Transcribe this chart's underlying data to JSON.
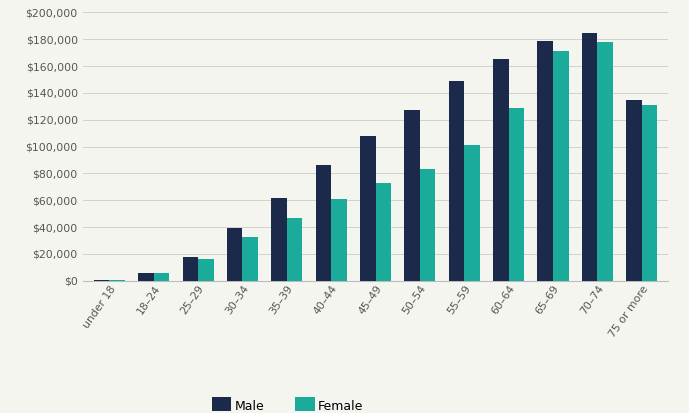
{
  "categories": [
    "under 18",
    "18–24",
    "25–29",
    "30–34",
    "35–39",
    "40–44",
    "45–49",
    "50–54",
    "55–59",
    "60–64",
    "65–69",
    "70–74",
    "75 or more"
  ],
  "male": [
    500,
    5500,
    18000,
    39000,
    62000,
    86000,
    108000,
    127000,
    149000,
    165000,
    179000,
    185000,
    135000
  ],
  "female": [
    500,
    5500,
    16500,
    33000,
    47000,
    61000,
    73000,
    83000,
    101000,
    129000,
    171000,
    178000,
    131000
  ],
  "male_color": "#1b2a4a",
  "female_color": "#1aab9b",
  "background_color": "#f5f5f0",
  "grid_color": "#d0d0cc",
  "ylim": [
    0,
    200000
  ],
  "ytick_step": 20000,
  "bar_width": 0.35,
  "legend_labels": [
    "Male",
    "Female"
  ],
  "legend_marker_size": 14
}
